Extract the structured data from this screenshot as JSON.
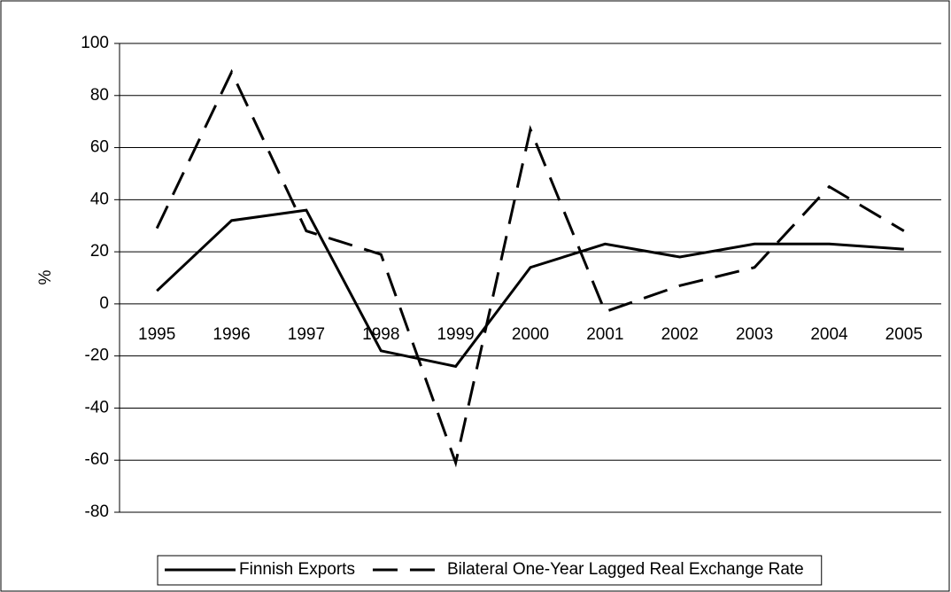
{
  "chart_data": {
    "type": "line",
    "y_label": "%",
    "categories": [
      "1995",
      "1996",
      "1997",
      "1998",
      "1999",
      "2000",
      "2001",
      "2002",
      "2003",
      "2004",
      "2005"
    ],
    "series": [
      {
        "name": "Finnish Exports",
        "color": "#000000",
        "style": "solid",
        "values": [
          5,
          32,
          36,
          -18,
          -24,
          14,
          23,
          18,
          23,
          23,
          21
        ]
      },
      {
        "name": "Bilateral One-Year Lagged Real Exchange Rate",
        "color": "#000000",
        "style": "dashed",
        "values": [
          29,
          89,
          28,
          19,
          -61,
          67,
          -3,
          7,
          14,
          45,
          28
        ]
      }
    ],
    "ylim": [
      -80,
      100
    ],
    "yticks": [
      -80,
      -60,
      -40,
      -20,
      0,
      20,
      40,
      60,
      80,
      100
    ],
    "grid": true,
    "legend": "bottom"
  }
}
